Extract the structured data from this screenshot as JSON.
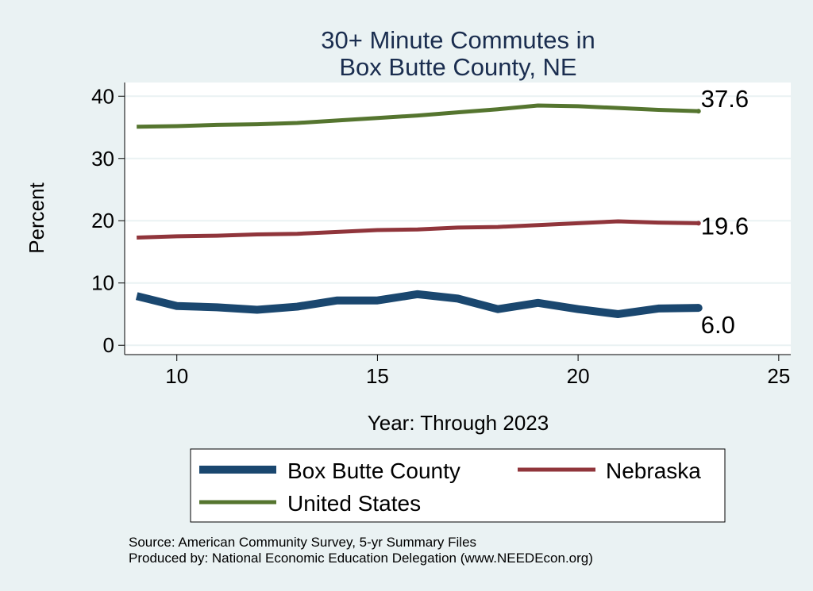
{
  "chart_data": {
    "type": "line",
    "title_lines": [
      "30+ Minute Commutes in",
      "Box Butte County, NE"
    ],
    "xlabel": "Year: Through 2023",
    "ylabel": "Percent",
    "xlim": [
      8.7,
      25.3
    ],
    "ylim": [
      -1.5,
      42.2
    ],
    "x_ticks": [
      10,
      15,
      20,
      25
    ],
    "y_ticks": [
      0,
      10,
      20,
      30,
      40
    ],
    "grid": true,
    "x": [
      9,
      10,
      11,
      12,
      13,
      14,
      15,
      16,
      17,
      18,
      19,
      20,
      21,
      22,
      23
    ],
    "series": [
      {
        "name": "Box Butte County",
        "color": "#1a476f",
        "values": [
          7.9,
          6.3,
          6.1,
          5.7,
          6.2,
          7.2,
          7.2,
          8.2,
          7.5,
          5.8,
          6.8,
          5.8,
          5.0,
          5.9,
          6.0
        ],
        "end_label": "6.0"
      },
      {
        "name": "Nebraska",
        "color": "#90353b",
        "values": [
          17.3,
          17.5,
          17.6,
          17.8,
          17.9,
          18.2,
          18.5,
          18.6,
          18.9,
          19.0,
          19.3,
          19.6,
          19.9,
          19.7,
          19.6
        ],
        "end_label": "19.6"
      },
      {
        "name": "United States",
        "color": "#55752f",
        "values": [
          35.1,
          35.2,
          35.4,
          35.5,
          35.7,
          36.1,
          36.5,
          36.9,
          37.4,
          37.9,
          38.5,
          38.4,
          38.1,
          37.8,
          37.6
        ],
        "end_label": "37.6"
      }
    ],
    "legend": {
      "placement": "bottom",
      "entries": [
        "Box Butte County",
        "Nebraska",
        "United States"
      ]
    },
    "notes": [
      "Source: American Community Survey, 5-yr Summary Files",
      "Produced by: National Economic Education Delegation (www.NEEDEcon.org)"
    ]
  }
}
